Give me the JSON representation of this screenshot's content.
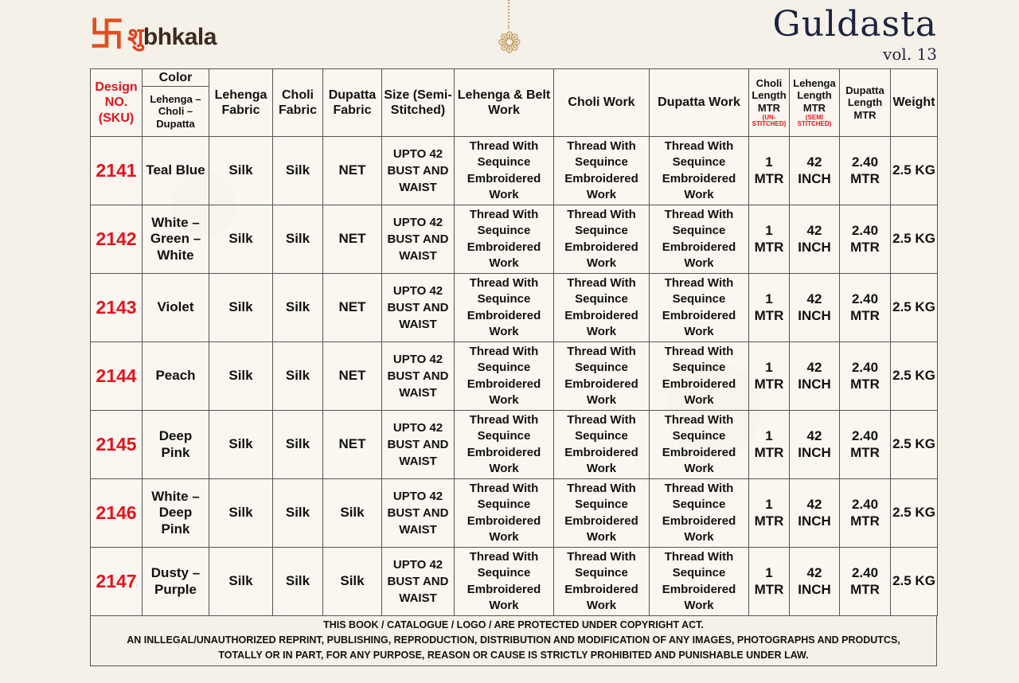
{
  "brand": {
    "logo_text": "Shubhkala",
    "logo_prefix": "शु",
    "logo_suffix": "bhkala",
    "collection": "Guldasta",
    "volume": "vol. 13"
  },
  "colors": {
    "sku": "#e1141e",
    "title": "#1c2340",
    "logo": "#e0501e"
  },
  "header": {
    "design": "Design NO. (SKU)",
    "color": "Color",
    "color_sub": "Lehenga – Choli – Dupatta",
    "lehenga_fabric": "Lehenga Fabric",
    "choli_fabric": "Choli Fabric",
    "dupatta_fabric": "Dupatta Fabric",
    "size": "Size (Semi-Stitched)",
    "lehenga_work": "Lehenga & Belt Work",
    "choli_work": "Choli Work",
    "dupatta_work": "Dupatta Work",
    "choli_length": "Choli Length MTR",
    "choli_length_note": "(UN-STITCHED)",
    "lehenga_length": "Lehenga Length MTR",
    "lehenga_length_note": "(SEMI STITCHED)",
    "dupatta_length": "Dupatta Length MTR",
    "weight": "Weight"
  },
  "rows": [
    {
      "sku": "2141",
      "color": "Teal Blue",
      "lehenga_fabric": "Silk",
      "choli_fabric": "Silk",
      "dupatta_fabric": "NET",
      "size": "UPTO 42 BUST AND WAIST",
      "lehenga_work": "Thread With Sequince Embroidered Work",
      "choli_work": "Thread With Sequince Embroidered Work",
      "dupatta_work": "Thread With Sequince Embroidered Work",
      "choli_length": "1 MTR",
      "lehenga_length": "42 INCH",
      "dupatta_length": "2.40 MTR",
      "weight": "2.5 KG"
    },
    {
      "sku": "2142",
      "color": "White – Green – White",
      "lehenga_fabric": "Silk",
      "choli_fabric": "Silk",
      "dupatta_fabric": "NET",
      "size": "UPTO 42 BUST AND WAIST",
      "lehenga_work": "Thread With Sequince Embroidered Work",
      "choli_work": "Thread With Sequince Embroidered Work",
      "dupatta_work": "Thread With Sequince Embroidered Work",
      "choli_length": "1 MTR",
      "lehenga_length": "42 INCH",
      "dupatta_length": "2.40 MTR",
      "weight": "2.5 KG"
    },
    {
      "sku": "2143",
      "color": "Violet",
      "lehenga_fabric": "Silk",
      "choli_fabric": "Silk",
      "dupatta_fabric": "NET",
      "size": "UPTO 42 BUST AND WAIST",
      "lehenga_work": "Thread With Sequince Embroidered Work",
      "choli_work": "Thread With Sequince Embroidered Work",
      "dupatta_work": "Thread With Sequince Embroidered Work",
      "choli_length": "1 MTR",
      "lehenga_length": "42 INCH",
      "dupatta_length": "2.40 MTR",
      "weight": "2.5 KG"
    },
    {
      "sku": "2144",
      "color": "Peach",
      "lehenga_fabric": "Silk",
      "choli_fabric": "Silk",
      "dupatta_fabric": "NET",
      "size": "UPTO 42 BUST AND WAIST",
      "lehenga_work": "Thread With Sequince Embroidered Work",
      "choli_work": "Thread With Sequince Embroidered Work",
      "dupatta_work": "Thread With Sequince Embroidered Work",
      "choli_length": "1 MTR",
      "lehenga_length": "42 INCH",
      "dupatta_length": "2.40 MTR",
      "weight": "2.5 KG"
    },
    {
      "sku": "2145",
      "color": "Deep Pink",
      "lehenga_fabric": "Silk",
      "choli_fabric": "Silk",
      "dupatta_fabric": "NET",
      "size": "UPTO 42 BUST AND WAIST",
      "lehenga_work": "Thread With Sequince Embroidered Work",
      "choli_work": "Thread With Sequince Embroidered Work",
      "dupatta_work": "Thread With Sequince Embroidered Work",
      "choli_length": "1 MTR",
      "lehenga_length": "42 INCH",
      "dupatta_length": "2.40 MTR",
      "weight": "2.5 KG"
    },
    {
      "sku": "2146",
      "color": "White – Deep Pink",
      "lehenga_fabric": "Silk",
      "choli_fabric": "Silk",
      "dupatta_fabric": "Silk",
      "size": "UPTO 42 BUST AND WAIST",
      "lehenga_work": "Thread With Sequince Embroidered Work",
      "choli_work": "Thread With Sequince Embroidered Work",
      "dupatta_work": "Thread With Sequince Embroidered Work",
      "choli_length": "1 MTR",
      "lehenga_length": "42 INCH",
      "dupatta_length": "2.40 MTR",
      "weight": "2.5 KG"
    },
    {
      "sku": "2147",
      "color": "Dusty – Purple",
      "lehenga_fabric": "Silk",
      "choli_fabric": "Silk",
      "dupatta_fabric": "Silk",
      "size": "UPTO 42 BUST AND WAIST",
      "lehenga_work": "Thread With Sequince Embroidered Work",
      "choli_work": "Thread With Sequince Embroidered Work",
      "dupatta_work": "Thread With Sequince Embroidered Work",
      "choli_length": "1 MTR",
      "lehenga_length": "42 INCH",
      "dupatta_length": "2.40 MTR",
      "weight": "2.5 KG"
    }
  ],
  "footer": {
    "line1": "THIS BOOK / CATALOGUE / LOGO / ARE PROTECTED UNDER COPYRIGHT ACT.",
    "line2": "AN INLLEGAL/UNAUTHORIZED REPRINT, PUBLISHING, REPRODUCTION, DISTRIBUTION AND MODIFICATION OF ANY IMAGES, PHOTOGRAPHS AND PRODUTCS,",
    "line3": "TOTALLY OR IN PART, FOR ANY PURPOSE, REASON OR CAUSE IS STRICTLY PROHIBITED AND PUNISHABLE UNDER LAW."
  }
}
